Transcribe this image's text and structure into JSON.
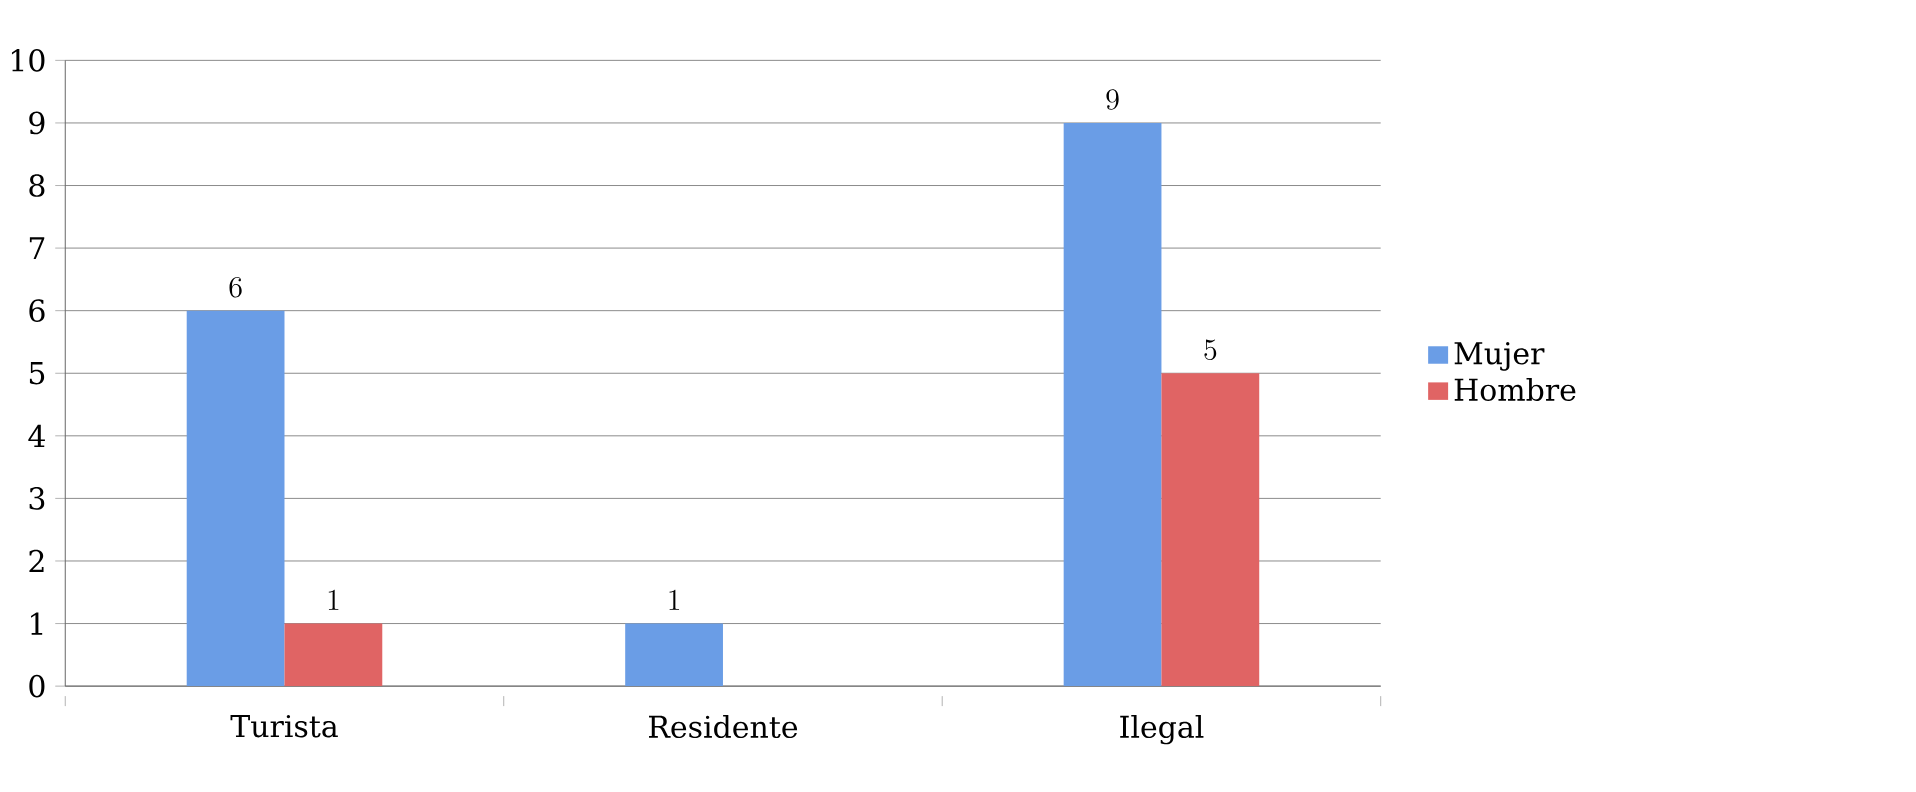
{
  "chart_data": {
    "type": "bar",
    "categories": [
      "Turista",
      "Residente",
      "Ilegal"
    ],
    "series": [
      {
        "name": "Mujer",
        "color": "#6a9de6",
        "values": [
          6,
          1,
          9
        ]
      },
      {
        "name": "Hombre",
        "color": "#e06464",
        "values": [
          1,
          null,
          5
        ]
      }
    ],
    "ylim": [
      0,
      10
    ],
    "yticks": [
      0,
      1,
      2,
      3,
      4,
      5,
      6,
      7,
      8,
      9,
      10
    ],
    "grid": "y",
    "legend": "right",
    "data_labels": true
  }
}
